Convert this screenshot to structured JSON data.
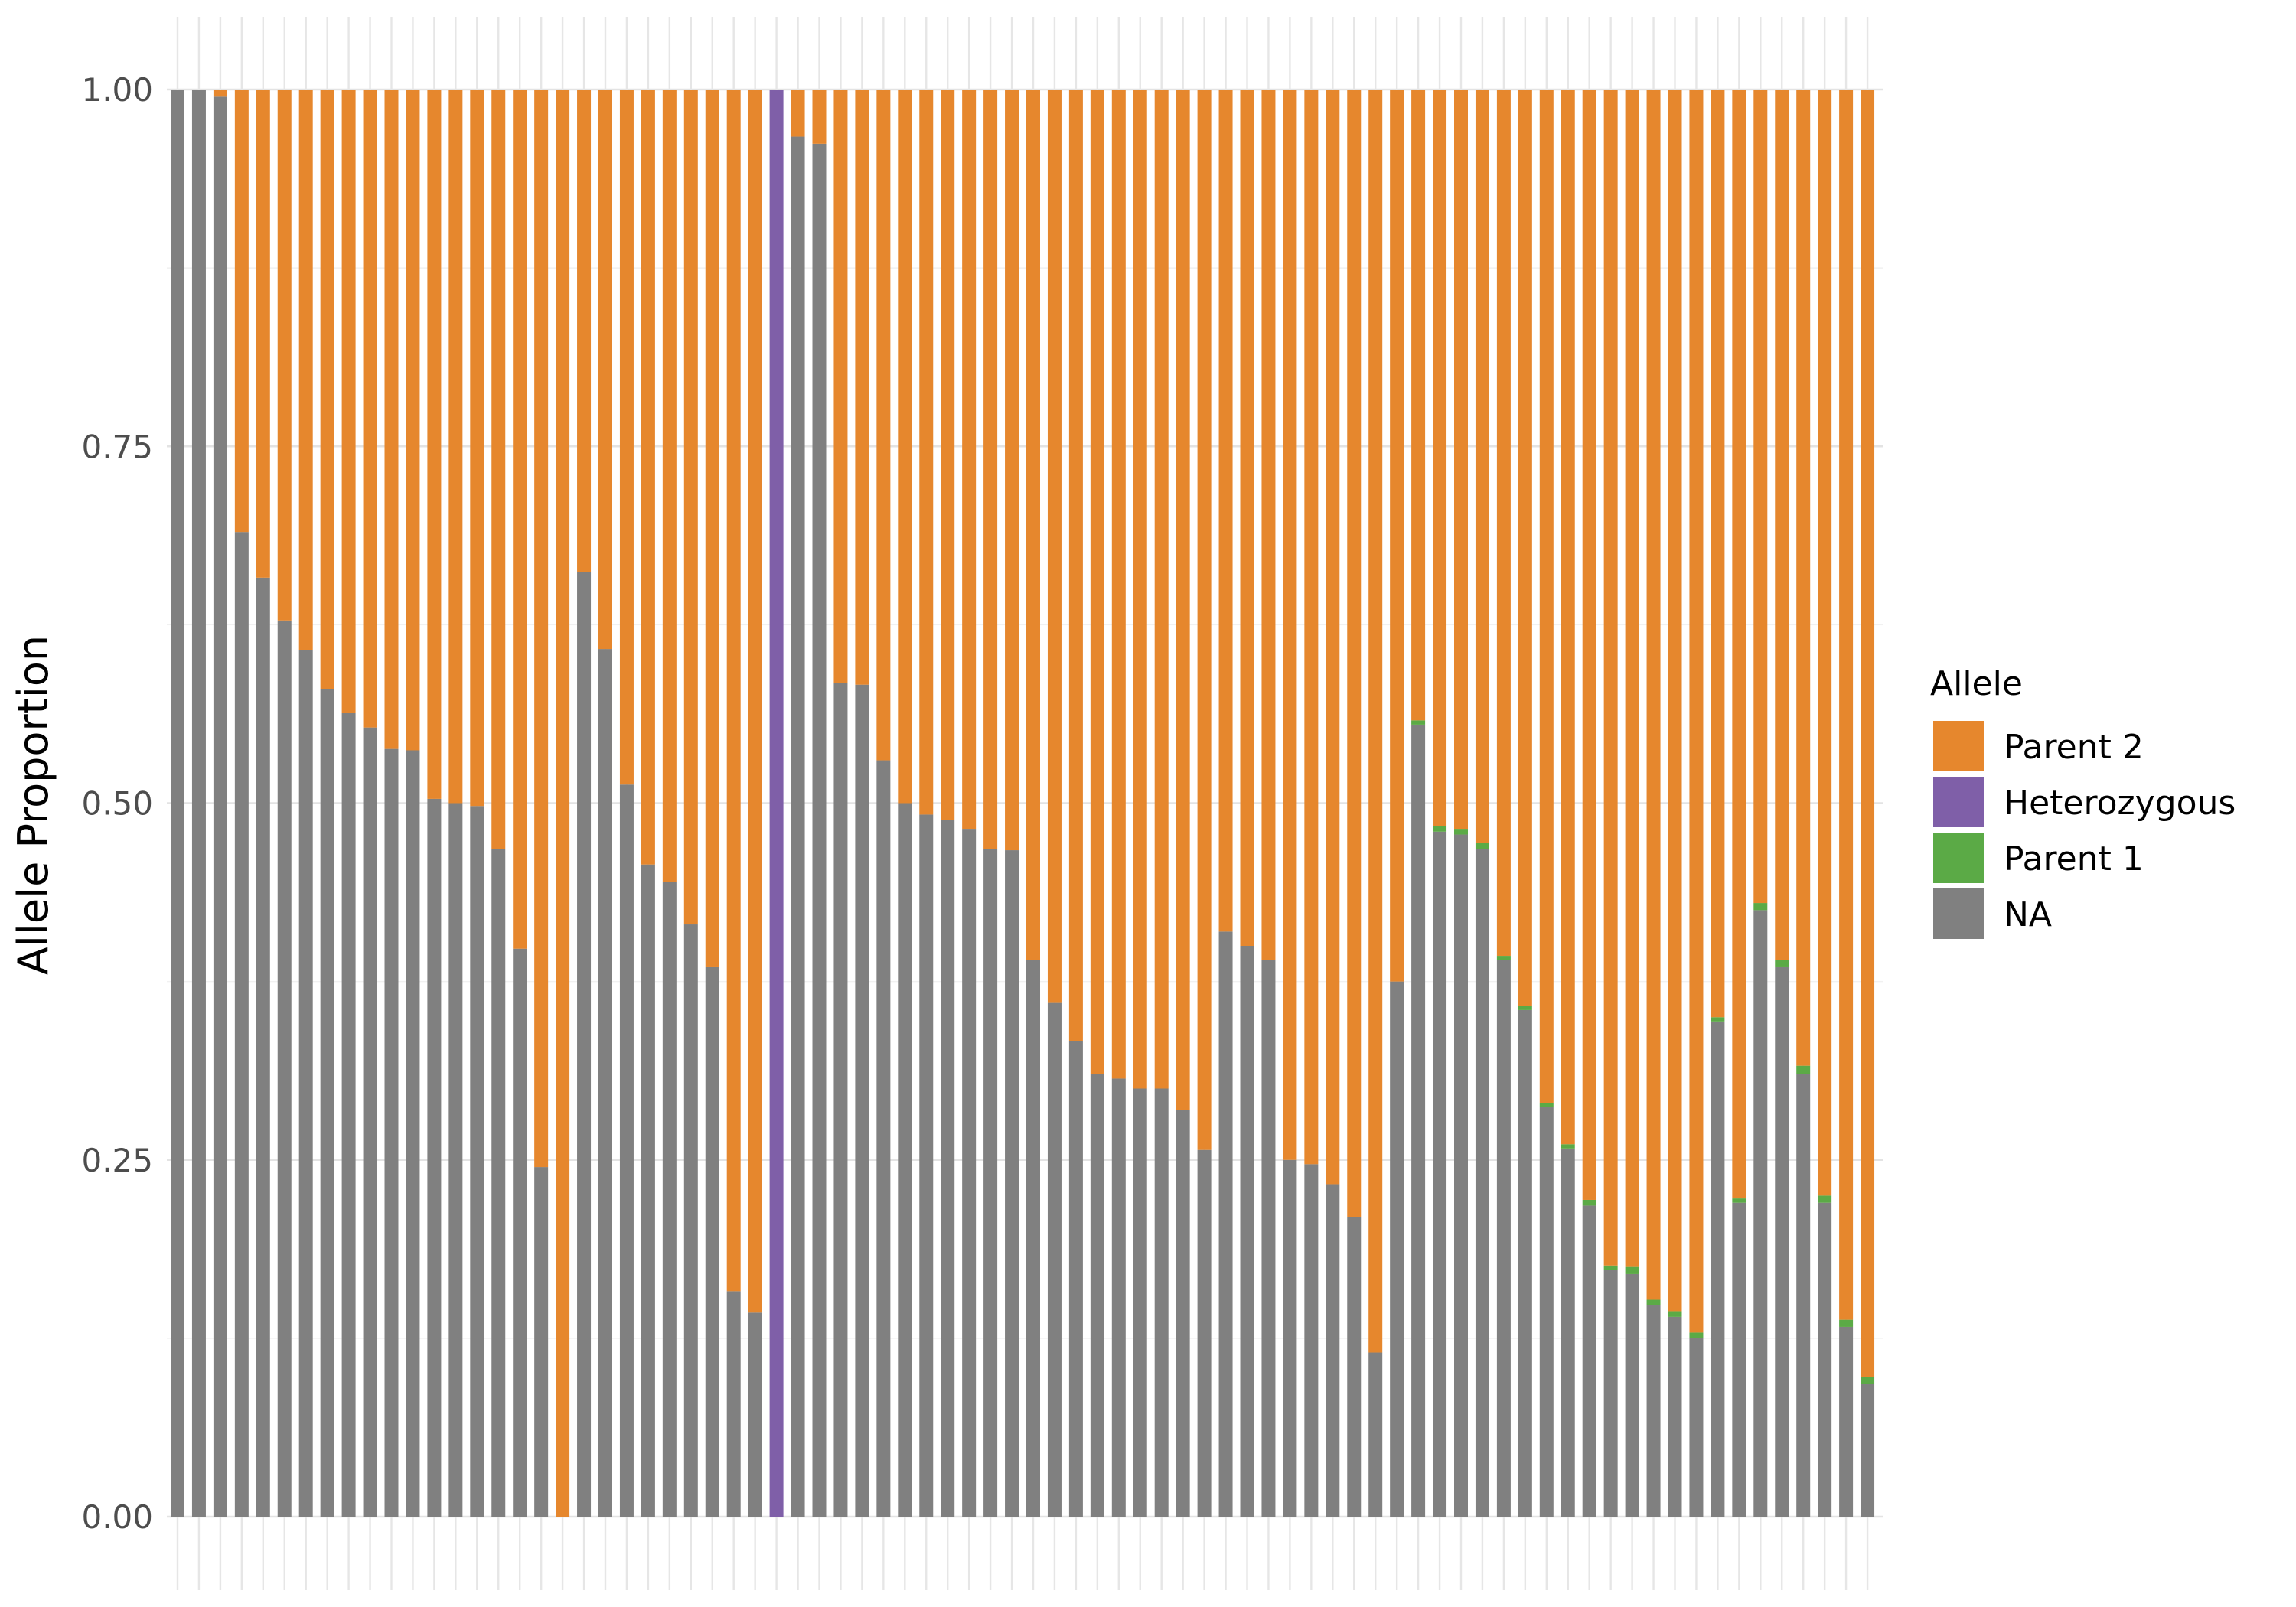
{
  "chart_data": {
    "type": "bar",
    "stacked": true,
    "title": "",
    "xlabel": "",
    "ylabel": "Allele Proportion",
    "ylim": [
      0,
      1
    ],
    "yticks": [
      "0.00",
      "0.25",
      "0.50",
      "0.75",
      "1.00"
    ],
    "x_tick_labels_shown": false,
    "grid": true,
    "legend": {
      "title": "Allele",
      "position": "right",
      "entries": [
        {
          "name": "Parent 2",
          "color": "#E6872D"
        },
        {
          "name": "Heterozygous",
          "color": "#7F5FA8"
        },
        {
          "name": "Parent 1",
          "color": "#5BAA46"
        },
        {
          "name": "NA",
          "color": "#808080"
        }
      ]
    },
    "bar_count": 80,
    "series": [
      {
        "name": "NA",
        "color": "#808080",
        "values": [
          1.0,
          1.0,
          0.995,
          0.69,
          0.658,
          0.628,
          0.607,
          0.58,
          0.563,
          0.553,
          0.538,
          0.537,
          0.503,
          0.5,
          0.498,
          0.468,
          0.398,
          0.245,
          0.0,
          0.662,
          0.608,
          0.513,
          0.457,
          0.445,
          0.415,
          0.385,
          0.158,
          0.143,
          0.0,
          0.967,
          0.962,
          0.584,
          0.583,
          0.53,
          0.5,
          0.492,
          0.488,
          0.482,
          0.468,
          0.467,
          0.39,
          0.36,
          0.333,
          0.31,
          0.307,
          0.3,
          0.3,
          0.285,
          0.257,
          0.41,
          0.4,
          0.39,
          0.25,
          0.247,
          0.233,
          0.21,
          0.115,
          0.375,
          0.555,
          0.48,
          0.478,
          0.468,
          0.39,
          0.355,
          0.287,
          0.258,
          0.218,
          0.173,
          0.17,
          0.148,
          0.14,
          0.125,
          0.347,
          0.22,
          0.425,
          0.385,
          0.31,
          0.22,
          0.133,
          0.093
        ]
      },
      {
        "name": "Parent 1",
        "color": "#5BAA46",
        "values": [
          0,
          0,
          0,
          0,
          0,
          0,
          0,
          0,
          0,
          0,
          0,
          0,
          0,
          0,
          0,
          0,
          0,
          0,
          0,
          0,
          0,
          0,
          0,
          0,
          0,
          0,
          0,
          0,
          0,
          0,
          0,
          0,
          0,
          0,
          0,
          0,
          0,
          0,
          0,
          0,
          0,
          0,
          0,
          0,
          0,
          0,
          0,
          0,
          0,
          0,
          0,
          0,
          0,
          0,
          0,
          0,
          0,
          0,
          0.003,
          0.004,
          0.004,
          0.004,
          0.003,
          0.003,
          0.003,
          0.003,
          0.004,
          0.003,
          0.005,
          0.004,
          0.004,
          0.004,
          0.003,
          0.003,
          0.005,
          0.005,
          0.006,
          0.005,
          0.005,
          0.005
        ]
      },
      {
        "name": "Heterozygous",
        "color": "#7F5FA8",
        "values": [
          0,
          0,
          0,
          0,
          0,
          0,
          0,
          0,
          0,
          0,
          0,
          0,
          0,
          0,
          0,
          0,
          0,
          0,
          0,
          0,
          0,
          0,
          0,
          0,
          0,
          0,
          0,
          0,
          1.0,
          0,
          0,
          0,
          0,
          0,
          0,
          0,
          0,
          0,
          0,
          0,
          0,
          0,
          0,
          0,
          0,
          0,
          0,
          0,
          0,
          0,
          0,
          0,
          0,
          0,
          0,
          0,
          0,
          0,
          0,
          0,
          0,
          0,
          0,
          0,
          0,
          0,
          0,
          0,
          0,
          0,
          0,
          0,
          0,
          0,
          0,
          0,
          0,
          0,
          0,
          0
        ]
      },
      {
        "name": "Parent 2",
        "color": "#E6872D",
        "values": [
          0.0,
          0.0,
          0.005,
          0.31,
          0.342,
          0.372,
          0.393,
          0.42,
          0.437,
          0.447,
          0.462,
          0.463,
          0.497,
          0.5,
          0.502,
          0.532,
          0.602,
          0.755,
          1.0,
          0.338,
          0.392,
          0.487,
          0.543,
          0.555,
          0.585,
          0.615,
          0.842,
          0.857,
          0.0,
          0.033,
          0.038,
          0.416,
          0.417,
          0.47,
          0.5,
          0.508,
          0.512,
          0.518,
          0.532,
          0.533,
          0.61,
          0.64,
          0.667,
          0.69,
          0.693,
          0.7,
          0.7,
          0.715,
          0.743,
          0.59,
          0.6,
          0.61,
          0.75,
          0.753,
          0.767,
          0.79,
          0.885,
          0.625,
          0.442,
          0.516,
          0.518,
          0.528,
          0.607,
          0.642,
          0.71,
          0.739,
          0.778,
          0.824,
          0.825,
          0.848,
          0.856,
          0.871,
          0.65,
          0.777,
          0.57,
          0.61,
          0.684,
          0.775,
          0.862,
          0.902
        ]
      }
    ]
  }
}
